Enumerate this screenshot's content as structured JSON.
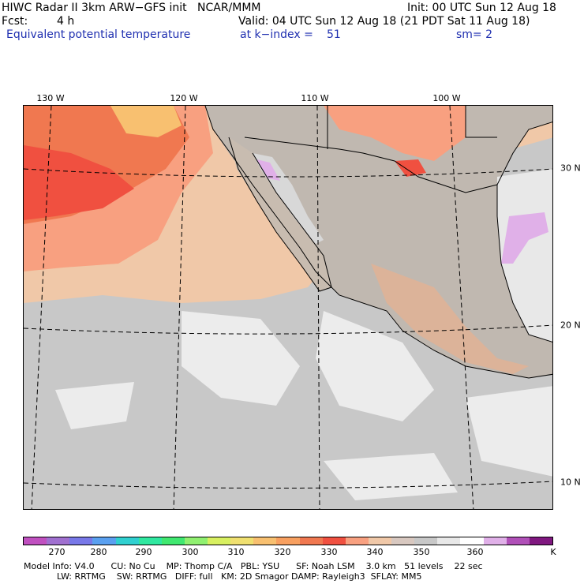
{
  "header": {
    "title": "HIWC Radar II 3km ARW−GFS init   NCAR/MMM",
    "init": "Init: 00 UTC Sun 12 Aug 18",
    "fcst_label": "Fcst:",
    "fcst_value": "4 h",
    "valid": "Valid: 04 UTC Sun 12 Aug 18 (21 PDT Sat 11 Aug 18)",
    "field": "Equivalent potential temperature",
    "level": "at k−index =",
    "level_value": "51",
    "smoothing": "sm= 2"
  },
  "axes": {
    "longitudes": [
      "130 W",
      "120 W",
      "110 W",
      "100 W"
    ],
    "latitudes": [
      "30 N",
      "20 N",
      "10 N"
    ]
  },
  "colorbar": {
    "unit": "K",
    "tick_labels": [
      "270",
      "280",
      "290",
      "300",
      "310",
      "320",
      "330",
      "340",
      "350",
      "360"
    ],
    "colors": [
      "#c050c0",
      "#a070d0",
      "#7878e8",
      "#5aa0f0",
      "#30d0d0",
      "#30e8a0",
      "#40e870",
      "#90f070",
      "#d8f060",
      "#f0e070",
      "#f8c070",
      "#f8a060",
      "#f07850",
      "#f05040",
      "#f8a080",
      "#f0c8a8",
      "#d8c8c0",
      "#c8c8c8",
      "#e8e8e8",
      "#ffffff",
      "#e0b0e8",
      "#b050b8",
      "#801880"
    ]
  },
  "footer": {
    "line1": "Model Info: V4.0      CU: No Cu    MP: Thomp C/A   PBL: YSU      SF: Noah LSM    3.0 km   51 levels    22 sec",
    "line2": "            LW: RRTMG    SW: RRTMG   DIFF: full   KM: 2D Smagor DAMP: Rayleigh3  SFLAY: MM5"
  }
}
